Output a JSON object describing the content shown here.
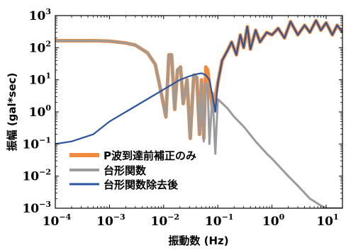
{
  "chart_data": {
    "type": "line",
    "xscale": "log",
    "yscale": "log",
    "xlim": [
      0.0001,
      20
    ],
    "ylim": [
      0.001,
      1000
    ],
    "xlabel": "振動数 (Hz)",
    "ylabel": "振幅 (gal*sec)",
    "x_ticks": [
      {
        "value": 0.0001,
        "base": "10",
        "exp": "−4"
      },
      {
        "value": 0.001,
        "base": "10",
        "exp": "−3"
      },
      {
        "value": 0.01,
        "base": "10",
        "exp": "−2"
      },
      {
        "value": 0.1,
        "base": "10",
        "exp": "−1"
      },
      {
        "value": 1,
        "base": "10",
        "exp": "0"
      },
      {
        "value": 10,
        "base": "10",
        "exp": "1"
      }
    ],
    "y_ticks": [
      {
        "value": 0.001,
        "base": "10",
        "exp": "−3"
      },
      {
        "value": 0.01,
        "base": "10",
        "exp": "−2"
      },
      {
        "value": 0.1,
        "base": "10",
        "exp": "−1"
      },
      {
        "value": 1,
        "base": "10",
        "exp": "0"
      },
      {
        "value": 10,
        "base": "10",
        "exp": "1"
      },
      {
        "value": 100,
        "base": "10",
        "exp": "2"
      },
      {
        "value": 1000,
        "base": "10",
        "exp": "3"
      }
    ],
    "legend_position": "bottom-left",
    "series": [
      {
        "name": "P波到達前補正のみ",
        "color": "#F08A3C",
        "x": [
          0.0001,
          0.0005,
          0.001,
          0.002,
          0.003,
          0.005,
          0.007,
          0.009,
          0.011,
          0.0125,
          0.014,
          0.016,
          0.018,
          0.0205,
          0.023,
          0.027,
          0.031,
          0.036,
          0.041,
          0.046,
          0.05,
          0.055,
          0.06,
          0.065,
          0.07,
          0.08,
          0.09,
          0.1,
          0.12,
          0.15,
          0.18,
          0.22,
          0.26,
          0.3,
          0.35,
          0.4,
          0.5,
          0.6,
          0.8,
          1,
          1.3,
          1.7,
          2.2,
          3,
          4,
          5,
          6.5,
          8,
          10,
          13,
          16,
          20
        ],
        "y": [
          165,
          165,
          160,
          140,
          120,
          70,
          30,
          4,
          0.7,
          60,
          60,
          1.2,
          20,
          25,
          1.8,
          10,
          0.15,
          14,
          12,
          0.2,
          10,
          0.15,
          25,
          20,
          7,
          1.2,
          3,
          8,
          40,
          80,
          150,
          60,
          250,
          100,
          450,
          90,
          350,
          150,
          300,
          250,
          400,
          200,
          650,
          250,
          500,
          300,
          700,
          350,
          600,
          250,
          500,
          300
        ]
      },
      {
        "name": "台形関数",
        "color": "#9B9B9D",
        "x": [
          0.0001,
          0.0005,
          0.001,
          0.002,
          0.003,
          0.005,
          0.007,
          0.009,
          0.011,
          0.0125,
          0.014,
          0.016,
          0.018,
          0.0205,
          0.023,
          0.027,
          0.031,
          0.036,
          0.041,
          0.046,
          0.05,
          0.055,
          0.06,
          0.065,
          0.07,
          0.08,
          0.09,
          0.1,
          0.15,
          0.2,
          0.3,
          0.5,
          0.8,
          1,
          2,
          3,
          5,
          8,
          10,
          15,
          20
        ],
        "y": [
          165,
          165,
          160,
          140,
          120,
          70,
          30,
          4,
          0.7,
          60,
          60,
          1.2,
          20,
          25,
          1.8,
          10,
          0.15,
          14,
          12,
          0.2,
          9,
          0.12,
          8,
          7,
          0.1,
          4,
          0.05,
          2.5,
          1.3,
          0.7,
          0.35,
          0.12,
          0.05,
          0.035,
          0.01,
          0.005,
          0.002,
          0.0012,
          0.001,
          0.001,
          0.001
        ]
      },
      {
        "name": "台形関数除去後",
        "color": "#2B55A0",
        "x": [
          0.0001,
          0.0002,
          0.0005,
          0.001,
          0.002,
          0.005,
          0.01,
          0.02,
          0.03,
          0.04,
          0.05,
          0.06,
          0.07,
          0.08,
          0.09,
          0.1,
          0.12,
          0.15,
          0.18,
          0.22,
          0.26,
          0.3,
          0.35,
          0.4,
          0.5,
          0.6,
          0.8,
          1,
          1.3,
          1.7,
          2.2,
          3,
          4,
          5,
          6.5,
          8,
          10,
          13,
          16,
          20
        ],
        "y": [
          0.1,
          0.12,
          0.2,
          0.5,
          1,
          2.5,
          5,
          10,
          13,
          15,
          16,
          14,
          10,
          3,
          1,
          8,
          40,
          80,
          150,
          60,
          250,
          100,
          450,
          90,
          350,
          150,
          300,
          250,
          400,
          200,
          650,
          250,
          500,
          300,
          700,
          350,
          600,
          250,
          500,
          300
        ]
      }
    ]
  }
}
